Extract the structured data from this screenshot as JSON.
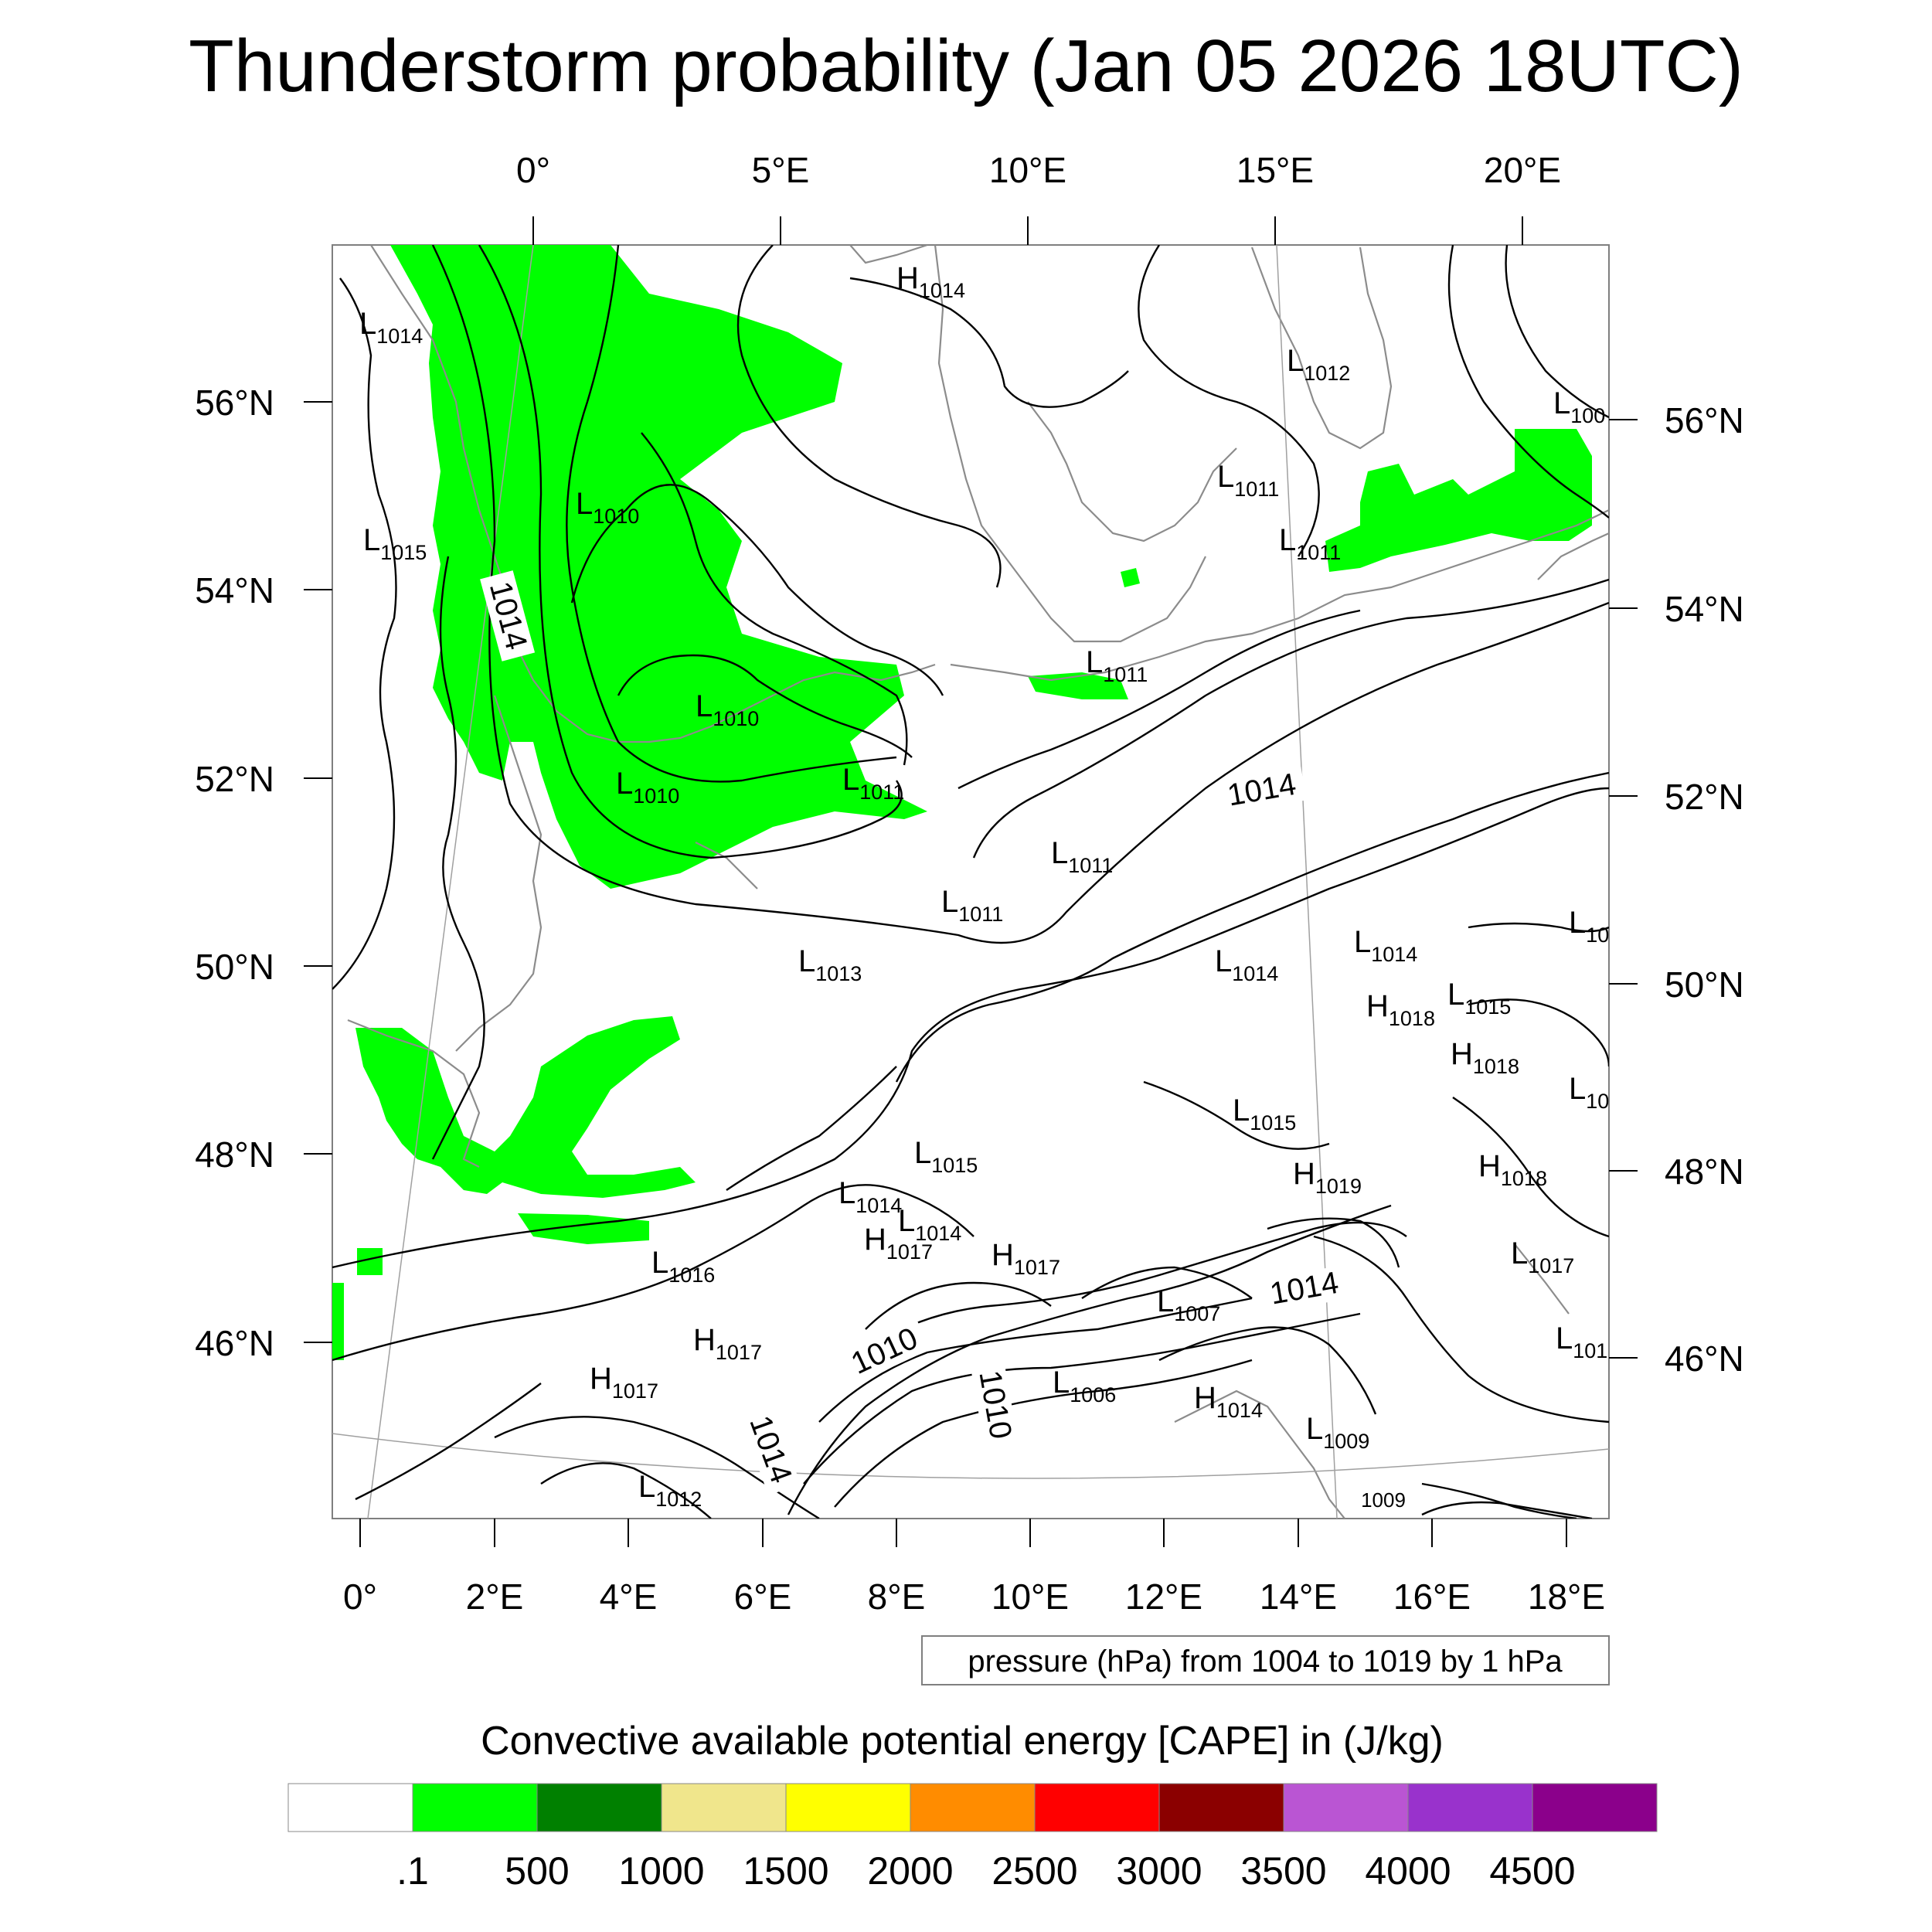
{
  "title": "Thunderstorm probability (Jan 05 2026 18UTC)",
  "top_lon_labels": [
    "0°",
    "5°E",
    "10°E",
    "15°E",
    "20°E"
  ],
  "bottom_lon_labels": [
    "0°",
    "2°E",
    "4°E",
    "6°E",
    "8°E",
    "10°E",
    "12°E",
    "14°E",
    "16°E",
    "18°E"
  ],
  "left_lat_labels": [
    "56°N",
    "54°N",
    "52°N",
    "50°N",
    "48°N",
    "46°N"
  ],
  "right_lat_labels": [
    "56°N",
    "54°N",
    "52°N",
    "50°N",
    "48°N",
    "46°N"
  ],
  "pressure_note": "pressure (hPa) from 1004 to 1019 by 1 hPa",
  "legend": {
    "title": "Convective available potential energy [CAPE] in (J/kg)",
    "colors": [
      "#ffffff",
      "#00ff00",
      "#008000",
      "#f0e68c",
      "#ffff00",
      "#ff8c00",
      "#ff0000",
      "#8b0000",
      "#ba55d3",
      "#9932cc",
      "#8b008b"
    ],
    "labels": [
      ".1",
      "500",
      "1000",
      "1500",
      "2000",
      "2500",
      "3000",
      "3500",
      "4000",
      "4500"
    ]
  },
  "colors": {
    "cape_green": "#00ff00",
    "coastline": "#8c8c8c",
    "contour": "#000000"
  },
  "pressure_labels": [
    {
      "id": "h1014-north",
      "letter": "H",
      "value": "1014"
    },
    {
      "id": "l1014-nw",
      "letter": "L",
      "value": "1014"
    },
    {
      "id": "l1012-sweden",
      "letter": "L",
      "value": "1012"
    },
    {
      "id": "l100-ne",
      "letter": "L",
      "value": "100"
    },
    {
      "id": "l1011-baltic",
      "letter": "L",
      "value": "1011"
    },
    {
      "id": "l1011-poland-coast",
      "letter": "L",
      "value": "1011"
    },
    {
      "id": "l1010-northsea",
      "letter": "L",
      "value": "1010"
    },
    {
      "id": "l1015-west",
      "letter": "L",
      "value": "1015"
    },
    {
      "id": "l1011-germany",
      "letter": "L",
      "value": "1011"
    },
    {
      "id": "l1010-netherlands",
      "letter": "L",
      "value": "1010"
    },
    {
      "id": "l1010-belgium",
      "letter": "L",
      "value": "1010"
    },
    {
      "id": "l1011-rhine",
      "letter": "L",
      "value": "1011"
    },
    {
      "id": "l1011-central",
      "letter": "L",
      "value": "1011"
    },
    {
      "id": "l1011-saxony",
      "letter": "L",
      "value": "1011"
    },
    {
      "id": "l10-east",
      "letter": "L",
      "value": "10"
    },
    {
      "id": "l1014-silesia",
      "letter": "L",
      "value": "1014"
    },
    {
      "id": "l1013-luxembourg",
      "letter": "L",
      "value": "1013"
    },
    {
      "id": "l1014-czech",
      "letter": "L",
      "value": "1014"
    },
    {
      "id": "h1018-moravia",
      "letter": "H",
      "value": "1018"
    },
    {
      "id": "l1015-slovakia",
      "letter": "L",
      "value": "1015"
    },
    {
      "id": "h1018-slovakia",
      "letter": "H",
      "value": "1018"
    },
    {
      "id": "l10-east-2",
      "letter": "L",
      "value": "10"
    },
    {
      "id": "l1015-bavaria",
      "letter": "L",
      "value": "1015"
    },
    {
      "id": "l1015-austria",
      "letter": "L",
      "value": "1015"
    },
    {
      "id": "h1019-vienna",
      "letter": "H",
      "value": "1019"
    },
    {
      "id": "h1018-hungary",
      "letter": "H",
      "value": "1018"
    },
    {
      "id": "l1014-swabia",
      "letter": "L",
      "value": "1014"
    },
    {
      "id": "l1014-bodensee",
      "letter": "L",
      "value": "1014"
    },
    {
      "id": "h1017-swiss-north",
      "letter": "H",
      "value": "1017"
    },
    {
      "id": "h1017-tirol",
      "letter": "H",
      "value": "1017"
    },
    {
      "id": "l1016-burgundy",
      "letter": "L",
      "value": "1016"
    },
    {
      "id": "l1007-alps",
      "letter": "L",
      "value": "1007"
    },
    {
      "id": "l1017-hungary-south",
      "letter": "L",
      "value": "1017"
    },
    {
      "id": "h1017-jura",
      "letter": "H",
      "value": "1017"
    },
    {
      "id": "h1017-rhone",
      "letter": "H",
      "value": "1017"
    },
    {
      "id": "l1006-po",
      "letter": "L",
      "value": "1006"
    },
    {
      "id": "h1014-venice",
      "letter": "H",
      "value": "1014"
    },
    {
      "id": "l101-croatia",
      "letter": "L",
      "value": "101"
    },
    {
      "id": "l1009-istria",
      "letter": "L",
      "value": "1009"
    },
    {
      "id": "l1012-provence",
      "letter": "L",
      "value": "1012"
    }
  ],
  "isobar_labels": [
    {
      "id": "iso-1014-west",
      "value": "1014"
    },
    {
      "id": "iso-1014-east",
      "value": "1014"
    },
    {
      "id": "iso-1014-alps",
      "value": "1014"
    },
    {
      "id": "iso-1010-alps-w",
      "value": "1010"
    },
    {
      "id": "iso-1010-alps-c",
      "value": "1010"
    },
    {
      "id": "iso-1014-alps-w",
      "value": "1014"
    },
    {
      "id": "iso-1009-small",
      "value": "1009"
    }
  ]
}
